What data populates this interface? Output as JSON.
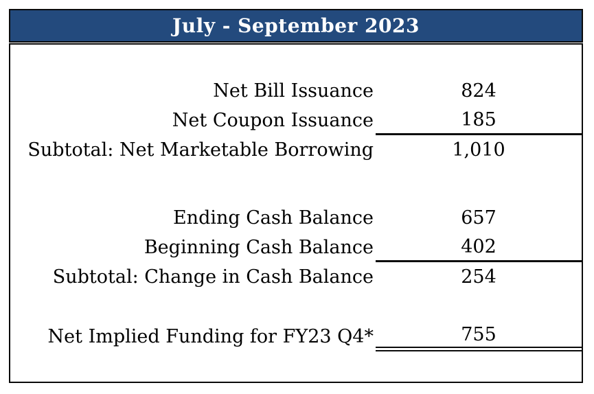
{
  "header": {
    "title": "July - September 2023",
    "bg_color": "#234a7d",
    "text_color": "#ffffff"
  },
  "table": {
    "groups": [
      {
        "rows": [
          {
            "label": "Net Bill Issuance",
            "value": "824",
            "underline": "none"
          },
          {
            "label": "Net Coupon Issuance",
            "value": "185",
            "underline": "single"
          },
          {
            "label": "Subtotal: Net Marketable Borrowing",
            "value": "1,010",
            "underline": "none"
          }
        ]
      },
      {
        "rows": [
          {
            "label": "Ending Cash Balance",
            "value": "657",
            "underline": "none"
          },
          {
            "label": "Beginning Cash Balance",
            "value": "402",
            "underline": "single"
          },
          {
            "label": "Subtotal: Change in Cash Balance",
            "value": "254",
            "underline": "none"
          }
        ]
      },
      {
        "rows": [
          {
            "label": "Net Implied Funding for FY23 Q4*",
            "value": "755",
            "underline": "double"
          }
        ]
      }
    ]
  }
}
